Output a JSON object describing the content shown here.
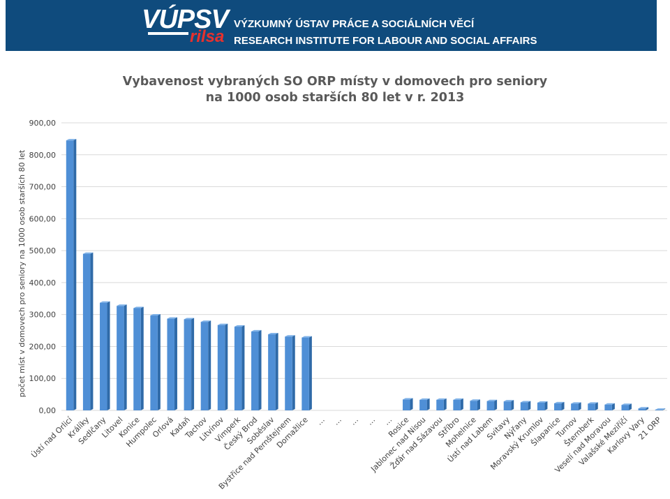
{
  "header": {
    "logo_top": "VÚPSV",
    "logo_bottom": "rilsa",
    "institute_cz": "VÝZKUMNÝ ÚSTAV PRÁCE A SOCIÁLNÍCH VĚCÍ",
    "institute_en": "RESEARCH INSTITUTE FOR LABOUR AND SOCIAL AFFAIRS",
    "banner_color": "#0f4b7d",
    "accent_color": "#e8312d"
  },
  "chart_data": {
    "type": "bar",
    "title_line1": "Vybavenost vybraných SO ORP místy v domovech pro seniory",
    "title_line2": "na 1000 osob starších 80 let v r. 2013",
    "ylabel": "počet míst v domovech pro seniory na 1000 osob starších 80 let",
    "xlabel": "",
    "ylim": [
      0,
      900
    ],
    "yticks": [
      "0,00",
      "100,00",
      "200,00",
      "300,00",
      "400,00",
      "500,00",
      "600,00",
      "700,00",
      "800,00",
      "900,00"
    ],
    "grid": true,
    "bar_color": "#4f8fd6",
    "categories": [
      "Ústí nad Orlicí",
      "Králíky",
      "Sedlčany",
      "Litovel",
      "Konice",
      "Humpolec",
      "Orlová",
      "Kadaň",
      "Tachov",
      "Litvínov",
      "Vimperk",
      "Český Brod",
      "Soběslav",
      "Bystřice nad Pernštejnem",
      "Domažlice",
      "…",
      "…",
      "…",
      "…",
      "…",
      "Rosice",
      "Jablonec nad Nisou",
      "Žďár nad Sázavou",
      "Stříbro",
      "Mohelnice",
      "Ústí nad Labem",
      "Svitavy",
      "Nýřany",
      "Moravský Krumlov",
      "Šlapanice",
      "Turnov",
      "Šternberk",
      "Veselí nad Moravou",
      "Valašské Meziříčí",
      "Karlovy Vary",
      "21 ORP"
    ],
    "values": [
      845,
      490,
      337,
      327,
      320,
      297,
      287,
      285,
      277,
      267,
      262,
      247,
      238,
      231,
      228,
      null,
      null,
      null,
      null,
      null,
      34,
      33,
      33,
      33,
      30,
      29,
      28,
      25,
      24,
      22,
      21,
      21,
      18,
      17,
      6,
      2
    ]
  }
}
